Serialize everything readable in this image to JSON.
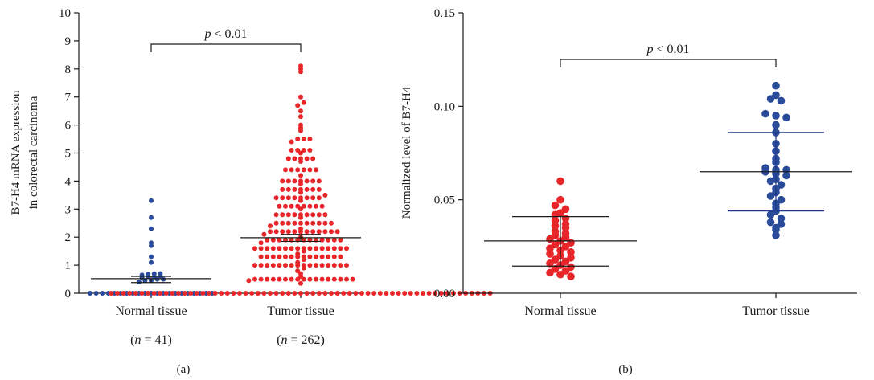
{
  "chart_data": [
    {
      "type": "scatter",
      "panel_label": "(a)",
      "ylabel_lines": [
        "B7-H4 mRNA expression",
        "in colorectal carcinoma"
      ],
      "ylim": [
        0,
        10
      ],
      "yticks": [
        "0",
        "1",
        "2",
        "3",
        "4",
        "5",
        "6",
        "7",
        "8",
        "9",
        "10"
      ],
      "categories": [
        "Normal tissue",
        "Tumor tissue"
      ],
      "category_sublabels": [
        [
          "(",
          "n",
          " = 41)"
        ],
        [
          "(",
          "n",
          " = 262)"
        ]
      ],
      "significance": {
        "prefix": "p",
        "text": " < 0.01"
      },
      "colors": [
        "#2a4a9a",
        "#e8262a"
      ],
      "series": [
        {
          "n": 41,
          "mean": 0.52,
          "sem_low": 0.38,
          "sem_high": 0.6,
          "values": [
            0,
            0,
            0,
            0,
            0,
            0,
            0,
            0,
            0,
            0,
            0,
            0,
            0,
            0,
            0,
            0,
            0,
            0,
            0,
            0,
            0,
            0.4,
            0.45,
            0.45,
            0.5,
            0.5,
            0.55,
            0.6,
            0.6,
            0.62,
            0.65,
            0.68,
            0.7,
            0.7,
            1.1,
            1.3,
            1.7,
            1.8,
            2.3,
            2.7,
            3.3
          ]
        },
        {
          "n": 262,
          "mean": 1.98,
          "sem_low": 1.85,
          "sem_high": 2.1,
          "values": [
            0,
            0,
            0,
            0,
            0,
            0,
            0,
            0,
            0,
            0,
            0,
            0,
            0,
            0,
            0,
            0,
            0,
            0,
            0,
            0,
            0,
            0,
            0,
            0,
            0,
            0,
            0,
            0,
            0,
            0,
            0,
            0,
            0,
            0,
            0,
            0,
            0,
            0,
            0,
            0,
            0,
            0,
            0,
            0,
            0,
            0,
            0,
            0,
            0,
            0,
            0,
            0,
            0,
            0,
            0,
            0,
            0,
            0,
            0,
            0,
            0,
            0,
            0,
            0.35,
            0.45,
            0.5,
            0.5,
            0.5,
            0.5,
            0.5,
            0.5,
            0.5,
            0.5,
            0.5,
            0.5,
            0.5,
            0.5,
            0.5,
            0.5,
            0.5,
            0.5,
            0.5,
            0.6,
            0.7,
            0.8,
            0.9,
            1.0,
            1.0,
            1.0,
            1.0,
            1.0,
            1.0,
            1.0,
            1.0,
            1.0,
            1.0,
            1.0,
            1.0,
            1.0,
            1.0,
            1.0,
            1.0,
            1.1,
            1.2,
            1.3,
            1.3,
            1.3,
            1.3,
            1.3,
            1.3,
            1.3,
            1.3,
            1.3,
            1.3,
            1.3,
            1.3,
            1.3,
            1.3,
            1.4,
            1.5,
            1.6,
            1.6,
            1.6,
            1.6,
            1.6,
            1.6,
            1.6,
            1.6,
            1.6,
            1.6,
            1.6,
            1.6,
            1.6,
            1.6,
            1.6,
            1.6,
            1.8,
            1.9,
            1.9,
            1.9,
            1.9,
            1.9,
            1.9,
            1.9,
            1.9,
            1.9,
            1.9,
            1.9,
            1.9,
            1.9,
            2.0,
            2.1,
            2.2,
            2.2,
            2.2,
            2.2,
            2.2,
            2.2,
            2.2,
            2.2,
            2.2,
            2.2,
            2.2,
            2.2,
            2.3,
            2.4,
            2.5,
            2.5,
            2.5,
            2.5,
            2.5,
            2.5,
            2.5,
            2.5,
            2.5,
            2.5,
            2.7,
            2.8,
            2.8,
            2.8,
            2.8,
            2.8,
            2.8,
            2.8,
            2.8,
            2.8,
            3.0,
            3.1,
            3.1,
            3.1,
            3.1,
            3.1,
            3.1,
            3.1,
            3.1,
            3.3,
            3.4,
            3.4,
            3.4,
            3.4,
            3.4,
            3.4,
            3.4,
            3.4,
            3.5,
            3.6,
            3.7,
            3.7,
            3.7,
            3.7,
            3.7,
            3.7,
            3.7,
            3.9,
            4.0,
            4.0,
            4.0,
            4.0,
            4.0,
            4.0,
            4.0,
            4.2,
            4.4,
            4.4,
            4.4,
            4.4,
            4.4,
            4.4,
            4.7,
            4.8,
            4.8,
            4.8,
            4.8,
            4.8,
            5.0,
            5.1,
            5.1,
            5.1,
            5.1,
            5.4,
            5.5,
            5.5,
            5.5,
            5.8,
            5.9,
            6.0,
            6.3,
            6.5,
            6.7,
            6.8,
            7.0,
            7.9,
            8.0,
            8.1
          ]
        }
      ]
    },
    {
      "type": "scatter",
      "panel_label": "(b)",
      "ylabel": "Normalized level of B7-H4",
      "ylim": [
        0,
        0.15
      ],
      "yticks": [
        "0.00",
        "0.05",
        "0.10",
        "0.15"
      ],
      "categories": [
        "Normal tissue",
        "Tumor tissue"
      ],
      "significance": {
        "prefix": "p",
        "text": " < 0.01"
      },
      "colors": [
        "#e8262a",
        "#2a4a9a"
      ],
      "series": [
        {
          "mean": 0.028,
          "sd_low": 0.0145,
          "sd_high": 0.041,
          "values": [
            0.06,
            0.05,
            0.047,
            0.045,
            0.043,
            0.042,
            0.04,
            0.039,
            0.037,
            0.036,
            0.035,
            0.033,
            0.032,
            0.031,
            0.03,
            0.029,
            0.028,
            0.027,
            0.026,
            0.025,
            0.024,
            0.023,
            0.022,
            0.021,
            0.02,
            0.019,
            0.018,
            0.017,
            0.016,
            0.015,
            0.014,
            0.013,
            0.012,
            0.011,
            0.01,
            0.009
          ]
        },
        {
          "mean": 0.065,
          "sd_low": 0.044,
          "sd_high": 0.086,
          "values": [
            0.111,
            0.106,
            0.104,
            0.103,
            0.096,
            0.095,
            0.094,
            0.09,
            0.086,
            0.08,
            0.076,
            0.072,
            0.07,
            0.067,
            0.066,
            0.066,
            0.065,
            0.064,
            0.063,
            0.061,
            0.06,
            0.058,
            0.056,
            0.054,
            0.052,
            0.05,
            0.048,
            0.046,
            0.044,
            0.042,
            0.04,
            0.038,
            0.037,
            0.035,
            0.034,
            0.031
          ]
        }
      ]
    }
  ]
}
